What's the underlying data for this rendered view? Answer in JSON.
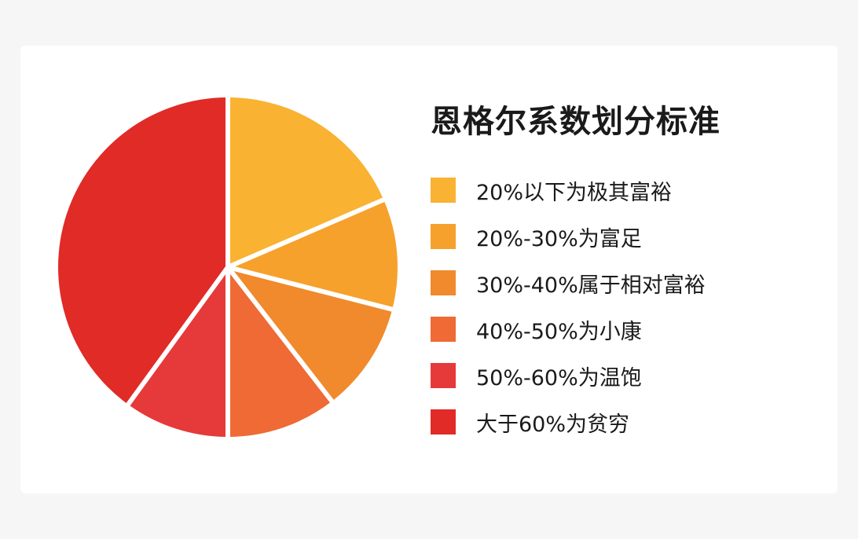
{
  "chart_data": {
    "type": "pie",
    "title": "恩格尔系数划分标准",
    "legend_position": "right",
    "slices": [
      {
        "label": "20%以下为极其富裕",
        "value": 18.5,
        "color": "#f9b231"
      },
      {
        "label": "20%-30%为富足",
        "value": 10.5,
        "color": "#f6a12b"
      },
      {
        "label": "30%-40%属于相对富裕",
        "value": 10.5,
        "color": "#f08a2c"
      },
      {
        "label": "40%-50%为小康",
        "value": 10.5,
        "color": "#ef6a34"
      },
      {
        "label": "50%-60%为温饱",
        "value": 10.0,
        "color": "#e63939"
      },
      {
        "label": "大于60%为贫穷",
        "value": 40.0,
        "color": "#e02b27"
      }
    ]
  }
}
